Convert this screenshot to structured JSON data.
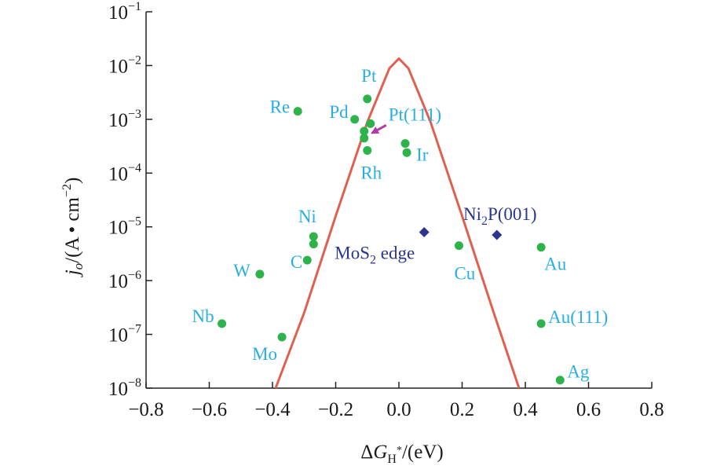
{
  "chart_data": {
    "type": "scatter",
    "xlabel": {
      "delta": "Δ",
      "g": "G",
      "sub": "H",
      "star": "*",
      "suffix": "/(eV)"
    },
    "ylabel": {
      "j": "j",
      "o": "o",
      "open": "/(A • cm",
      "exp": "−2",
      "close": ")"
    },
    "xlim": [
      -0.8,
      0.8
    ],
    "ylim_log10": [
      -8,
      -1
    ],
    "y_scale": "log",
    "grid": false,
    "x_ticks": [
      -0.8,
      -0.6,
      -0.4,
      -0.2,
      0.0,
      0.2,
      0.4,
      0.6,
      0.8
    ],
    "x_tick_labels": [
      "−0.8",
      "−0.6",
      "−0.4",
      "−0.2",
      "0.0",
      "0.2",
      "0.4",
      "0.6",
      "0.8"
    ],
    "y_ticks_exp": [
      -1,
      -2,
      -3,
      -4,
      -5,
      -6,
      -7,
      -8
    ],
    "y_tick_base": "10",
    "y_tick_exp_labels": [
      "−1",
      "−2",
      "−3",
      "−4",
      "−5",
      "−6",
      "−7",
      "−8"
    ],
    "colors": {
      "metal_points": "#2db34a",
      "metal_labels": "#29aee4",
      "compound_points": "#2b3590",
      "compound_labels": "#2b3590",
      "volcano_curve": "#e0604f",
      "arrow": "#b43aa8",
      "axis": "#222222"
    },
    "volcano_curve": {
      "peak_x": 0.0,
      "peak_log10": -1.87,
      "points": [
        {
          "x": -0.39,
          "log10": -8.0
        },
        {
          "x": -0.3,
          "log10": -6.6
        },
        {
          "x": -0.2,
          "log10": -4.8
        },
        {
          "x": -0.1,
          "log10": -3.05
        },
        {
          "x": -0.03,
          "log10": -2.05
        },
        {
          "x": 0.0,
          "log10": -1.87
        },
        {
          "x": 0.03,
          "log10": -2.05
        },
        {
          "x": 0.1,
          "log10": -3.05
        },
        {
          "x": 0.2,
          "log10": -4.8
        },
        {
          "x": 0.3,
          "log10": -6.6
        },
        {
          "x": 0.38,
          "log10": -8.0
        }
      ]
    },
    "metals": [
      {
        "label": "Pt",
        "x": -0.1,
        "log10": -2.62
      },
      {
        "label": "Re",
        "x": -0.32,
        "log10": -2.85
      },
      {
        "label": "Pd",
        "x": -0.14,
        "log10": -3.0
      },
      {
        "label": "",
        "x": -0.09,
        "log10": -3.08
      },
      {
        "label": "",
        "x": -0.11,
        "log10": -3.22
      },
      {
        "label": "",
        "x": -0.11,
        "log10": -3.35
      },
      {
        "label": "Rh",
        "x": -0.1,
        "log10": -3.58
      },
      {
        "label": "",
        "x": 0.02,
        "log10": -3.45
      },
      {
        "label": "Ir",
        "x": 0.025,
        "log10": -3.62
      },
      {
        "label": "Ni",
        "x": -0.27,
        "log10": -5.18
      },
      {
        "label": "",
        "x": -0.27,
        "log10": -5.32
      },
      {
        "label": "C",
        "x": -0.29,
        "log10": -5.62
      },
      {
        "label": "W",
        "x": -0.44,
        "log10": -5.88
      },
      {
        "label": "Nb",
        "x": -0.56,
        "log10": -6.8
      },
      {
        "label": "Mo",
        "x": -0.37,
        "log10": -7.05
      },
      {
        "label": "Cu",
        "x": 0.19,
        "log10": -5.35
      },
      {
        "label": "Au",
        "x": 0.45,
        "log10": -5.38
      },
      {
        "label": "Au(111)",
        "x": 0.45,
        "log10": -6.8
      },
      {
        "label": "Ag",
        "x": 0.51,
        "log10": -7.85
      }
    ],
    "compounds": [
      {
        "label_main": "MoS",
        "label_sub": "2",
        "label_rest": " edge",
        "x": 0.08,
        "log10": -5.1
      },
      {
        "label_main": "Ni",
        "label_sub": "2",
        "label_rest": "P(001)",
        "x": 0.31,
        "log10": -5.15
      }
    ],
    "annotation_arrow": {
      "label": "Pt(111)",
      "tip_x": -0.09,
      "tip_log10": -3.27
    }
  }
}
